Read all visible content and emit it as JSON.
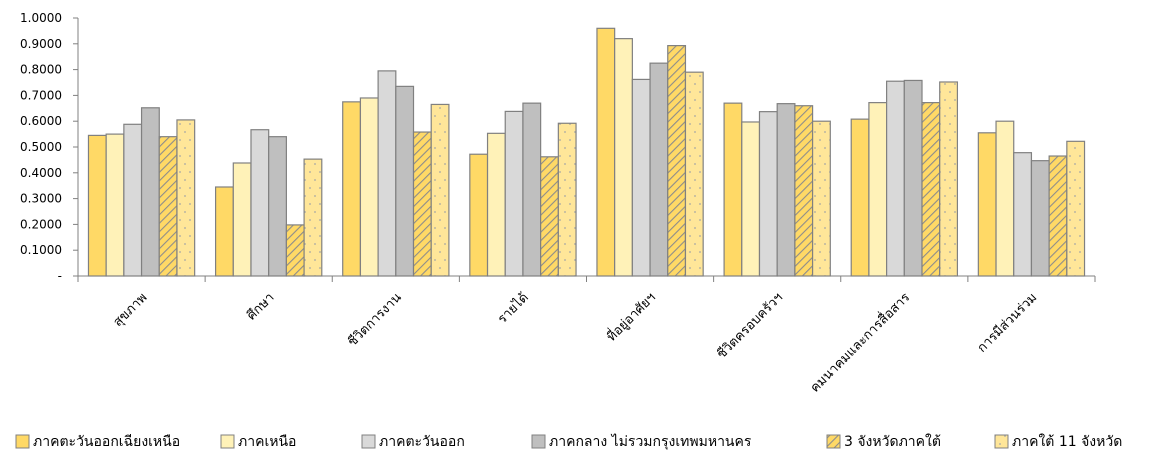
{
  "chart_data": {
    "type": "bar",
    "title": "",
    "xlabel": "",
    "ylabel": "",
    "ylim": [
      0,
      1
    ],
    "yticks": [
      {
        "value": 0,
        "label": "-"
      },
      {
        "value": 0.1,
        "label": "0.1000"
      },
      {
        "value": 0.2,
        "label": "0.2000"
      },
      {
        "value": 0.3,
        "label": "0.3000"
      },
      {
        "value": 0.4,
        "label": "0.4000"
      },
      {
        "value": 0.5,
        "label": "0.5000"
      },
      {
        "value": 0.6,
        "label": "0.6000"
      },
      {
        "value": 0.7,
        "label": "0.7000"
      },
      {
        "value": 0.8,
        "label": "0.8000"
      },
      {
        "value": 0.9,
        "label": "0.9000"
      },
      {
        "value": 1.0,
        "label": "1.0000"
      }
    ],
    "grid": false,
    "legend_position": "bottom",
    "categories": [
      "สุขภาพ",
      "ศึกษา",
      "ชีวิตการงาน",
      "รายได้",
      "ที่อยู่อาศัยฯ",
      "ชีวิตครอบครัวฯ",
      "คมนาคมและการสื่อสาร",
      "การมีส่วนร่วม"
    ],
    "series": [
      {
        "name": "ภาคตะวันออกเฉียงเหนือ",
        "color": "#ffd966",
        "pattern": "solid",
        "values": [
          0.545,
          0.345,
          0.675,
          0.472,
          0.96,
          0.67,
          0.608,
          0.555
        ]
      },
      {
        "name": "ภาคเหนือ",
        "color": "#fff2b8",
        "pattern": "solid",
        "values": [
          0.55,
          0.438,
          0.69,
          0.553,
          0.92,
          0.597,
          0.672,
          0.6
        ]
      },
      {
        "name": "ภาคตะวันออก",
        "color": "#d9d9d9",
        "pattern": "solid",
        "values": [
          0.588,
          0.567,
          0.795,
          0.638,
          0.762,
          0.637,
          0.755,
          0.478
        ]
      },
      {
        "name": "ภาคกลาง ไม่รวมกรุงเทพมหานคร",
        "color": "#bfbfbf",
        "pattern": "solid",
        "values": [
          0.652,
          0.54,
          0.735,
          0.67,
          0.825,
          0.668,
          0.758,
          0.447
        ]
      },
      {
        "name": "3 จังหวัดภาคใต้",
        "color": "#d9c27a",
        "pattern": "hatch",
        "values": [
          0.54,
          0.198,
          0.558,
          0.462,
          0.893,
          0.66,
          0.672,
          0.465
        ]
      },
      {
        "name": "ภาคใต้ 11 จังหวัด",
        "color": "#ffe699",
        "pattern": "dots",
        "values": [
          0.605,
          0.453,
          0.665,
          0.592,
          0.79,
          0.6,
          0.752,
          0.522
        ]
      }
    ]
  }
}
